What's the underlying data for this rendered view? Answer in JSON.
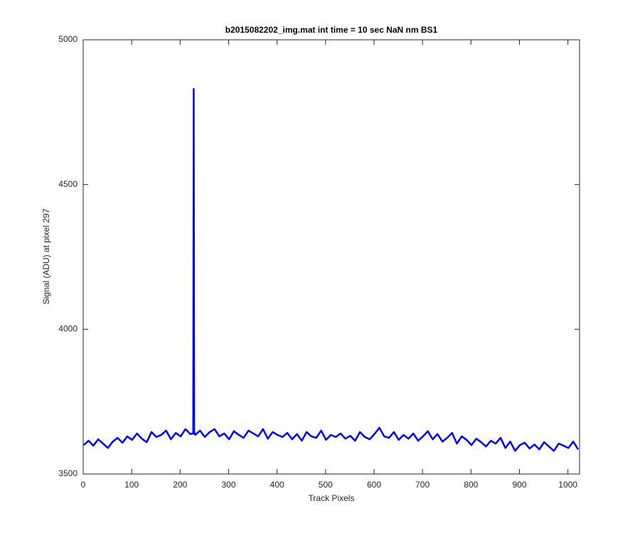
{
  "chart_data": {
    "type": "line",
    "title": "b2015082202_img.mat int time = 10 sec  NaN nm BS1",
    "x_label": "Track Pixels",
    "y_label": "Signal (ADU) at pixel 297",
    "xlim": [
      0,
      1024
    ],
    "xticks": [
      0,
      100,
      200,
      300,
      400,
      500,
      600,
      700,
      800,
      900,
      1000
    ],
    "ylim": [
      3500,
      5000
    ],
    "yticks": [
      3500,
      4000,
      4500,
      5000
    ],
    "series": [
      {
        "color": "#0000ff",
        "x": [
          1,
          11,
          21,
          31,
          41,
          51,
          61,
          71,
          81,
          91,
          101,
          111,
          121,
          131,
          141,
          151,
          161,
          171,
          181,
          191,
          201,
          211,
          221,
          227,
          228,
          229,
          231,
          241,
          251,
          261,
          271,
          281,
          291,
          301,
          311,
          321,
          331,
          341,
          351,
          361,
          371,
          381,
          391,
          401,
          411,
          421,
          431,
          441,
          451,
          461,
          471,
          481,
          491,
          501,
          511,
          521,
          531,
          541,
          551,
          561,
          571,
          581,
          591,
          601,
          611,
          621,
          631,
          641,
          651,
          661,
          671,
          681,
          691,
          701,
          711,
          721,
          731,
          741,
          751,
          761,
          771,
          781,
          791,
          801,
          811,
          821,
          831,
          841,
          851,
          861,
          871,
          881,
          891,
          901,
          911,
          921,
          931,
          941,
          951,
          961,
          971,
          981,
          991,
          1001,
          1011,
          1021
        ],
        "values": [
          3600,
          3615,
          3598,
          3620,
          3605,
          3590,
          3612,
          3625,
          3608,
          3630,
          3618,
          3640,
          3622,
          3610,
          3645,
          3628,
          3635,
          3650,
          3620,
          3642,
          3630,
          3655,
          3638,
          3640,
          4830,
          3645,
          3635,
          3650,
          3628,
          3645,
          3655,
          3630,
          3640,
          3620,
          3648,
          3635,
          3625,
          3650,
          3640,
          3630,
          3655,
          3622,
          3645,
          3635,
          3628,
          3642,
          3620,
          3638,
          3615,
          3645,
          3630,
          3625,
          3650,
          3618,
          3635,
          3628,
          3640,
          3622,
          3632,
          3615,
          3645,
          3628,
          3620,
          3638,
          3660,
          3630,
          3625,
          3645,
          3618,
          3635,
          3622,
          3640,
          3615,
          3630,
          3648,
          3620,
          3638,
          3612,
          3625,
          3642,
          3605,
          3630,
          3618,
          3600,
          3622,
          3610,
          3595,
          3615,
          3605,
          3625,
          3590,
          3612,
          3580,
          3600,
          3608,
          3588,
          3602,
          3585,
          3610,
          3595,
          3580,
          3605,
          3598,
          3590,
          3612,
          3585
        ]
      }
    ]
  }
}
